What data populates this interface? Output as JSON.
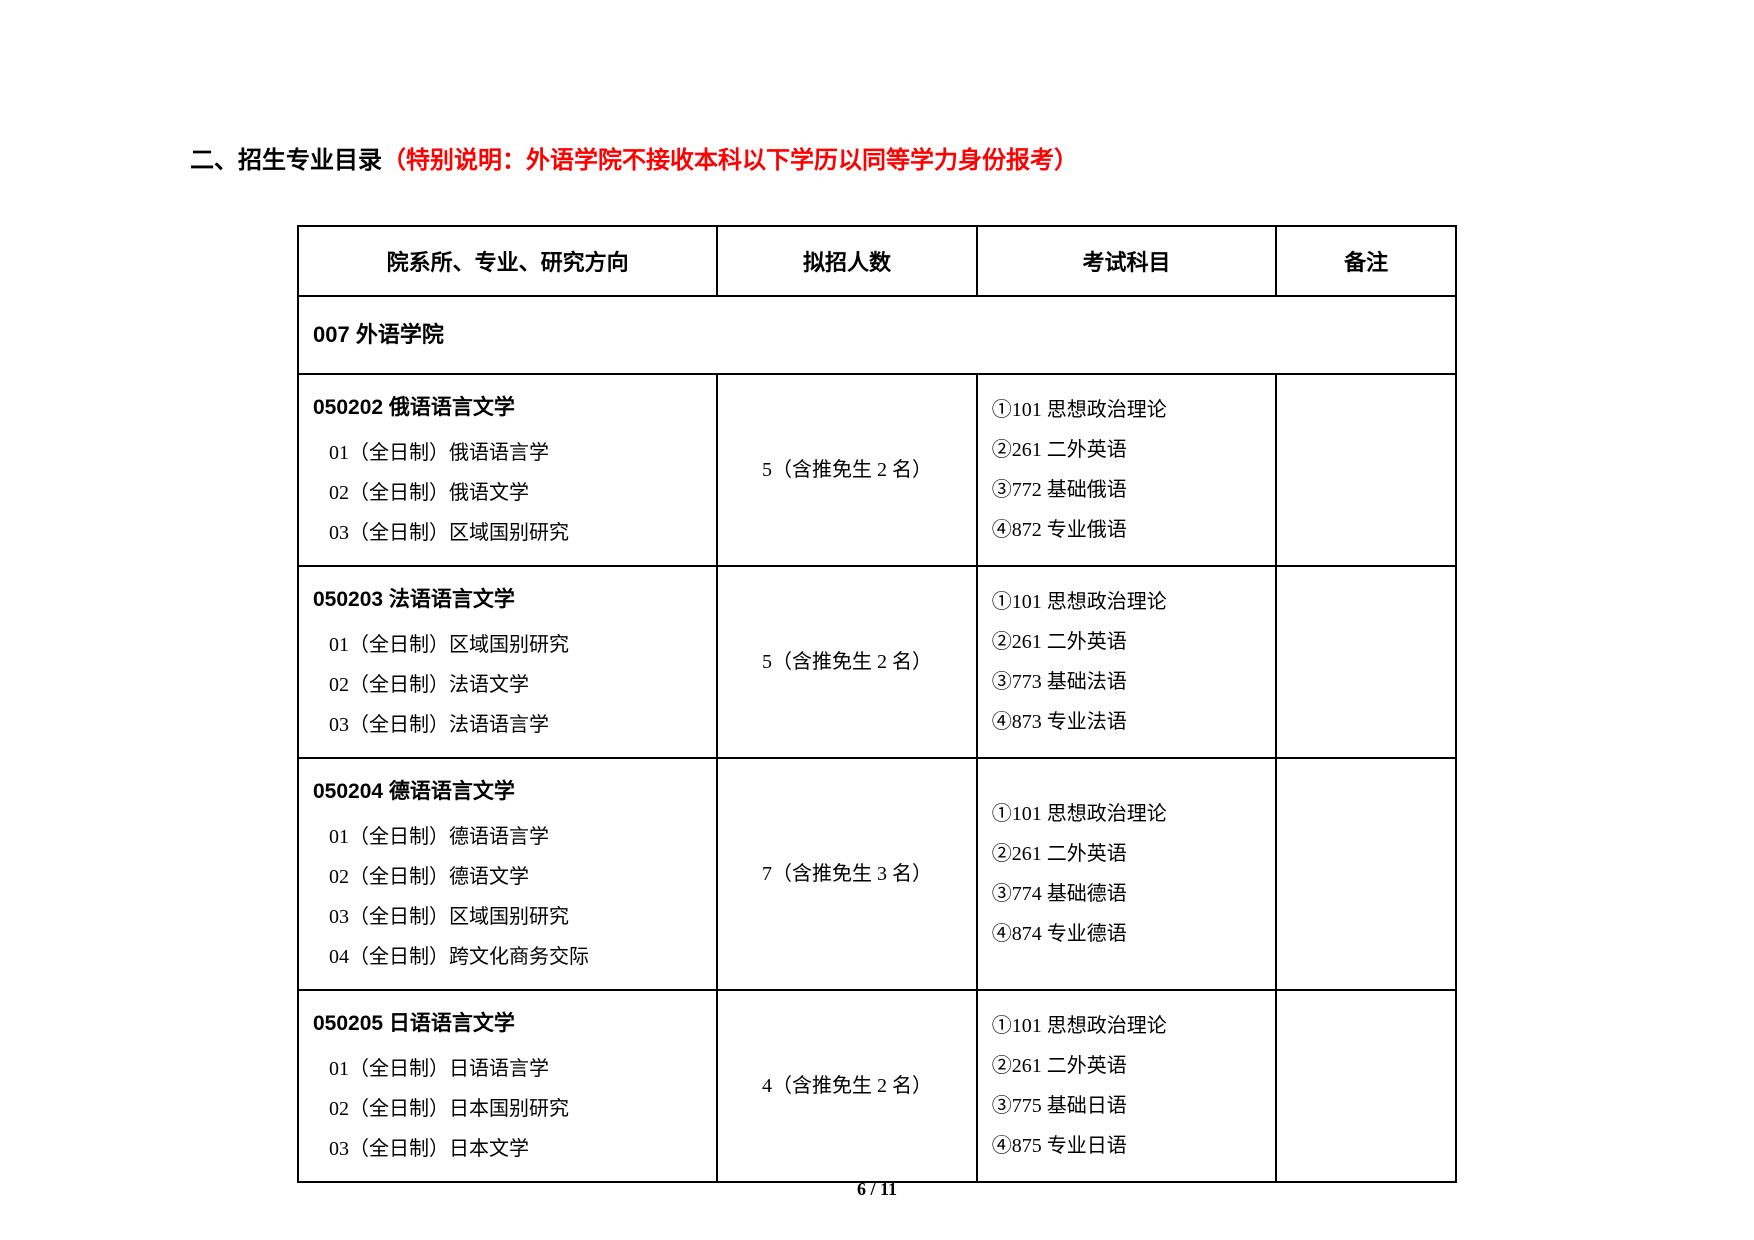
{
  "heading": {
    "black": "二、招生专业目录",
    "red": "（特别说明：外语学院不接收本科以下学历以同等学力身份报考）"
  },
  "table": {
    "headers": {
      "dept": "院系所、专业、研究方向",
      "count": "拟招人数",
      "exam": "考试科目",
      "note": "备注"
    },
    "section_label": "007 外语学院",
    "rows": [
      {
        "code_title": "050202 俄语语言文学",
        "tracks": [
          "01（全日制）俄语语言学",
          "02（全日制）俄语文学",
          "03（全日制）区域国别研究"
        ],
        "count": "5（含推免生 2 名）",
        "exams": [
          "①101 思想政治理论",
          "②261 二外英语",
          "③772 基础俄语",
          "④872 专业俄语"
        ],
        "note": ""
      },
      {
        "code_title": "050203 法语语言文学",
        "tracks": [
          "01（全日制）区域国别研究",
          "02（全日制）法语文学",
          "03（全日制）法语语言学"
        ],
        "count": "5（含推免生 2 名）",
        "exams": [
          "①101 思想政治理论",
          "②261 二外英语",
          "③773 基础法语",
          "④873 专业法语"
        ],
        "note": ""
      },
      {
        "code_title": "050204 德语语言文学",
        "tracks": [
          "01（全日制）德语语言学",
          "02（全日制）德语文学",
          "03（全日制）区域国别研究",
          "04（全日制）跨文化商务交际"
        ],
        "count": "7（含推免生 3 名）",
        "exams": [
          "①101 思想政治理论",
          "②261 二外英语",
          "③774 基础德语",
          "④874 专业德语"
        ],
        "note": ""
      },
      {
        "code_title": "050205 日语语言文学",
        "tracks": [
          "01（全日制）日语语言学",
          "02（全日制）日本国别研究",
          "03（全日制）日本文学"
        ],
        "count": "4（含推免生 2 名）",
        "exams": [
          "①101 思想政治理论",
          "②261 二外英语",
          "③775 基础日语",
          "④875 专业日语"
        ],
        "note": ""
      }
    ]
  },
  "page_number": "6 / 11",
  "colors": {
    "text": "#000000",
    "accent": "#ff0000",
    "border": "#000000",
    "background": "#ffffff"
  }
}
